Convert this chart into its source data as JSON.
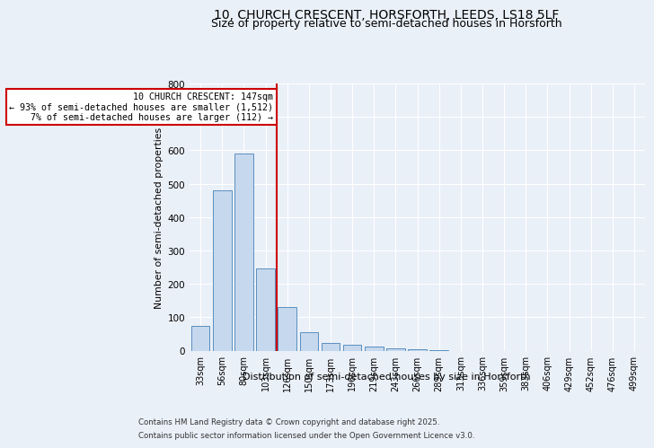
{
  "title_line1": "10, CHURCH CRESCENT, HORSFORTH, LEEDS, LS18 5LF",
  "title_line2": "Size of property relative to semi-detached houses in Horsforth",
  "xlabel": "Distribution of semi-detached houses by size in Horsforth",
  "ylabel": "Number of semi-detached properties",
  "categories": [
    "33sqm",
    "56sqm",
    "80sqm",
    "103sqm",
    "126sqm",
    "150sqm",
    "173sqm",
    "196sqm",
    "219sqm",
    "243sqm",
    "266sqm",
    "289sqm",
    "313sqm",
    "336sqm",
    "359sqm",
    "383sqm",
    "406sqm",
    "429sqm",
    "452sqm",
    "476sqm",
    "499sqm"
  ],
  "values": [
    75,
    480,
    590,
    245,
    130,
    55,
    22,
    18,
    12,
    6,
    5,
    1,
    0,
    0,
    0,
    0,
    0,
    0,
    0,
    0,
    0
  ],
  "bar_color": "#c5d8ed",
  "bar_edge_color": "#5a8fc0",
  "vline_color": "#cc0000",
  "annotation_text": "10 CHURCH CRESCENT: 147sqm\n← 93% of semi-detached houses are smaller (1,512)\n7% of semi-detached houses are larger (112) →",
  "annotation_box_color": "#ffffff",
  "annotation_box_edge_color": "#cc0000",
  "ylim": [
    0,
    800
  ],
  "yticks": [
    0,
    100,
    200,
    300,
    400,
    500,
    600,
    700,
    800
  ],
  "background_color": "#eaf0f8",
  "plot_background_color": "#eaf0f8",
  "footer_line1": "Contains HM Land Registry data © Crown copyright and database right 2025.",
  "footer_line2": "Contains public sector information licensed under the Open Government Licence v3.0.",
  "title_fontsize": 10,
  "subtitle_fontsize": 9,
  "bar_width": 0.85
}
